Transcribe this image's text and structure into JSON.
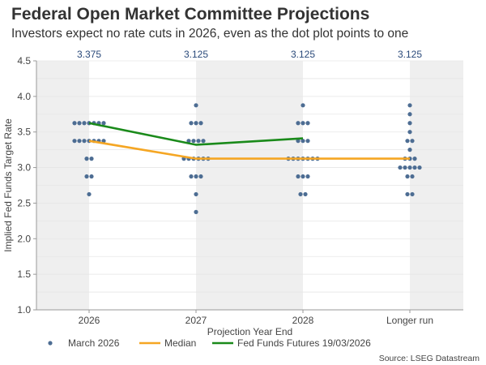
{
  "title": "Federal Open Market Committee Projections",
  "subtitle": "Investors expect no rate cuts in 2026, even as the dot plot points to one",
  "source": "Source: LSEG Datastream",
  "chart_data": {
    "type": "scatter",
    "xlabel": "Projection Year End",
    "ylabel": "Implied Fed Funds Target Rate",
    "ylim": [
      1.0,
      4.5
    ],
    "yticks": [
      "1.0",
      "1.5",
      "2.0",
      "2.5",
      "3.0",
      "3.5",
      "4.0",
      "4.5"
    ],
    "categories": [
      "2026",
      "2027",
      "2028",
      "Longer run"
    ],
    "top_labels": [
      "3.375",
      "3.125",
      "3.125",
      "3.125"
    ],
    "grid": true,
    "legend_placement": "bottom",
    "colors": {
      "dots": "#4d6d93",
      "median": "#f5a623",
      "futures": "#1a8a1a",
      "band": "#efefef",
      "top_label": "#2a4a7a"
    },
    "dots": {
      "name": "March 2026",
      "counts": [
        [
          [
            3.625,
            7
          ],
          [
            3.375,
            7
          ],
          [
            3.125,
            2
          ],
          [
            2.875,
            2
          ],
          [
            2.625,
            1
          ]
        ],
        [
          [
            3.875,
            1
          ],
          [
            3.625,
            3
          ],
          [
            3.375,
            4
          ],
          [
            3.125,
            6
          ],
          [
            2.875,
            3
          ],
          [
            2.625,
            1
          ],
          [
            2.375,
            1
          ]
        ],
        [
          [
            3.875,
            1
          ],
          [
            3.625,
            3
          ],
          [
            3.375,
            3
          ],
          [
            3.125,
            7
          ],
          [
            2.875,
            3
          ],
          [
            2.625,
            2
          ]
        ],
        [
          [
            3.875,
            1
          ],
          [
            3.75,
            1
          ],
          [
            3.625,
            1
          ],
          [
            3.5,
            1
          ],
          [
            3.375,
            2
          ],
          [
            3.25,
            1
          ],
          [
            3.125,
            3
          ],
          [
            3.0,
            5
          ],
          [
            2.875,
            2
          ],
          [
            2.625,
            2
          ]
        ]
      ]
    },
    "series": [
      {
        "name": "Median",
        "values": [
          3.375,
          3.125,
          3.125,
          3.125
        ]
      },
      {
        "name": "Fed Funds Futures 19/03/2026",
        "values": [
          3.625,
          3.32,
          3.41,
          null
        ]
      }
    ]
  }
}
